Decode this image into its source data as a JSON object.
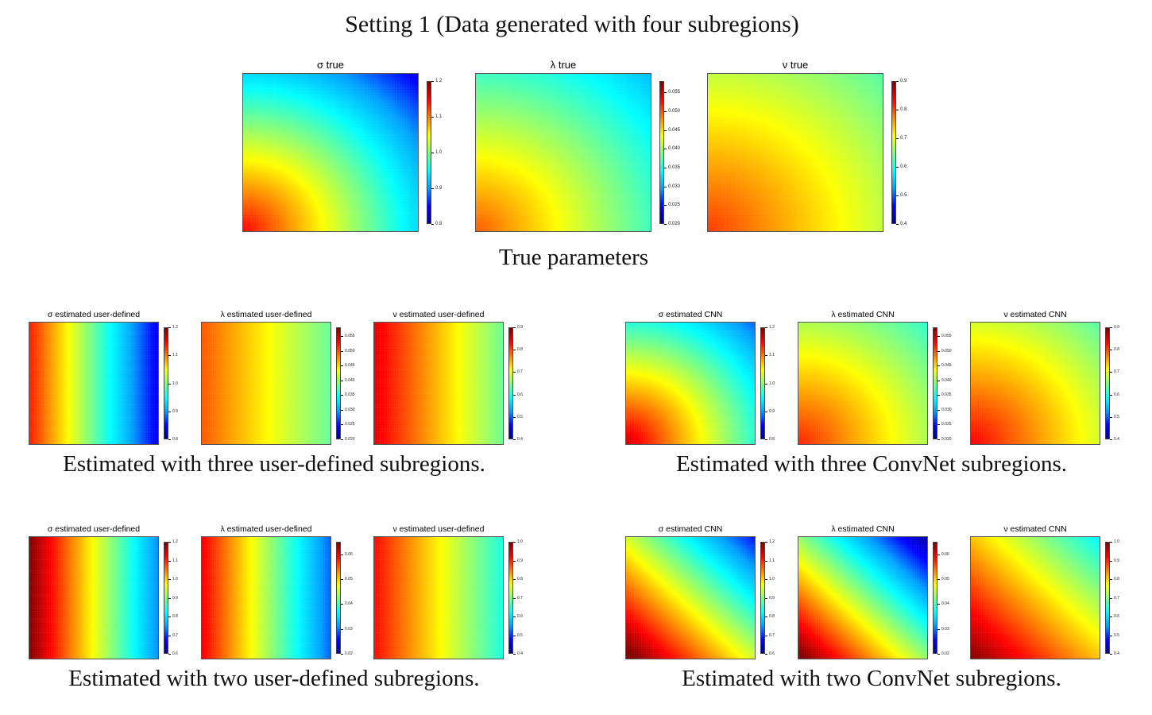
{
  "title": "Setting 1 (Data generated with four subregions)",
  "colormap": [
    "#00008f",
    "#0000ff",
    "#00a0ff",
    "#00ffff",
    "#80ff80",
    "#ffff00",
    "#ff8000",
    "#ff0000",
    "#800000"
  ],
  "chart_data": [
    {
      "group": "true",
      "caption": "True parameters",
      "panels": [
        {
          "type": "heatmap",
          "title": "σ true",
          "field": "radial",
          "from": 1.15,
          "to": 0.84,
          "clim": [
            0.8,
            1.2
          ],
          "ticks": [
            "0.8",
            "0.9",
            "1.0",
            "1.1",
            "1.2"
          ],
          "tickvals": [
            0.8,
            0.9,
            1.0,
            1.1,
            1.2
          ]
        },
        {
          "type": "heatmap",
          "title": "λ true",
          "field": "radial",
          "from": 0.05,
          "to": 0.031,
          "clim": [
            0.02,
            0.058
          ],
          "ticks": [
            "0.020",
            "0.025",
            "0.030",
            "0.035",
            "0.040",
            "0.045",
            "0.050",
            "0.055"
          ],
          "tickvals": [
            0.02,
            0.025,
            0.03,
            0.035,
            0.04,
            0.045,
            0.05,
            0.055
          ]
        },
        {
          "type": "heatmap",
          "title": "ν true",
          "field": "radial",
          "from": 0.81,
          "to": 0.63,
          "clim": [
            0.4,
            0.9
          ],
          "ticks": [
            "0.4",
            "0.5",
            "0.6",
            "0.7",
            "0.8",
            "0.9"
          ],
          "tickvals": [
            0.4,
            0.5,
            0.6,
            0.7,
            0.8,
            0.9
          ]
        }
      ]
    },
    {
      "group": "three-user",
      "caption": "Estimated with three user-defined subregions.",
      "panels": [
        {
          "type": "heatmap",
          "title": "σ estimated user-defined",
          "field": "horizontal",
          "from": 1.14,
          "to": 0.84,
          "clim": [
            0.8,
            1.2
          ],
          "ticks": [
            "0.8",
            "0.9",
            "1.0",
            "1.1",
            "1.2"
          ],
          "tickvals": [
            0.8,
            0.9,
            1.0,
            1.1,
            1.2
          ]
        },
        {
          "type": "heatmap",
          "title": "λ estimated user-defined",
          "field": "horizontal",
          "from": 0.05,
          "to": 0.038,
          "clim": [
            0.02,
            0.058
          ],
          "ticks": [
            "0.020",
            "0.025",
            "0.030",
            "0.035",
            "0.040",
            "0.045",
            "0.050",
            "0.055"
          ],
          "tickvals": [
            0.02,
            0.025,
            0.03,
            0.035,
            0.04,
            0.045,
            0.05,
            0.055
          ]
        },
        {
          "type": "heatmap",
          "title": "ν estimated user-defined",
          "field": "horizontal",
          "from": 0.85,
          "to": 0.64,
          "clim": [
            0.4,
            0.9
          ],
          "ticks": [
            "0.4",
            "0.5",
            "0.6",
            "0.7",
            "0.8",
            "0.9"
          ],
          "tickvals": [
            0.4,
            0.5,
            0.6,
            0.7,
            0.8,
            0.9
          ]
        }
      ]
    },
    {
      "group": "three-cnn",
      "caption": "Estimated with three ConvNet subregions.",
      "panels": [
        {
          "type": "heatmap",
          "title": "σ estimated CNN",
          "field": "radial",
          "from": 1.17,
          "to": 0.88,
          "clim": [
            0.8,
            1.2
          ],
          "ticks": [
            "0.8",
            "0.9",
            "1.0",
            "1.1",
            "1.2"
          ],
          "tickvals": [
            0.8,
            0.9,
            1.0,
            1.1,
            1.2
          ]
        },
        {
          "type": "heatmap",
          "title": "λ estimated CNN",
          "field": "radial",
          "from": 0.052,
          "to": 0.036,
          "clim": [
            0.02,
            0.058
          ],
          "ticks": [
            "0.020",
            "0.025",
            "0.030",
            "0.035",
            "0.040",
            "0.045",
            "0.050",
            "0.055"
          ],
          "tickvals": [
            0.02,
            0.025,
            0.03,
            0.035,
            0.04,
            0.045,
            0.05,
            0.055
          ]
        },
        {
          "type": "heatmap",
          "title": "ν estimated CNN",
          "field": "radial",
          "from": 0.84,
          "to": 0.63,
          "clim": [
            0.4,
            0.9
          ],
          "ticks": [
            "0.4",
            "0.5",
            "0.6",
            "0.7",
            "0.8",
            "0.9"
          ],
          "tickvals": [
            0.4,
            0.5,
            0.6,
            0.7,
            0.8,
            0.9
          ]
        }
      ]
    },
    {
      "group": "two-user",
      "caption": "Estimated with two user-defined subregions.",
      "panels": [
        {
          "type": "heatmap",
          "title": "σ estimated user-defined",
          "field": "horizontal",
          "from": 1.2,
          "to": 0.74,
          "clim": [
            0.6,
            1.2
          ],
          "ticks": [
            "0.6",
            "0.7",
            "0.8",
            "0.9",
            "1.0",
            "1.1",
            "1.2"
          ],
          "tickvals": [
            0.6,
            0.7,
            0.8,
            0.9,
            1.0,
            1.1,
            1.2
          ]
        },
        {
          "type": "heatmap",
          "title": "λ estimated user-defined",
          "field": "horizontal",
          "from": 0.06,
          "to": 0.029,
          "clim": [
            0.02,
            0.065
          ],
          "ticks": [
            "0.02",
            "0.03",
            "0.04",
            "0.05",
            "0.06"
          ],
          "tickvals": [
            0.02,
            0.03,
            0.04,
            0.05,
            0.06
          ]
        },
        {
          "type": "heatmap",
          "title": "ν estimated user-defined",
          "field": "horizontal",
          "from": 0.92,
          "to": 0.64,
          "clim": [
            0.4,
            1.0
          ],
          "ticks": [
            "0.4",
            "0.5",
            "0.6",
            "0.7",
            "0.8",
            "0.9",
            "1.0"
          ],
          "tickvals": [
            0.4,
            0.5,
            0.6,
            0.7,
            0.8,
            0.9,
            1.0
          ]
        }
      ]
    },
    {
      "group": "two-cnn",
      "caption": "Estimated with two ConvNet subregions.",
      "panels": [
        {
          "type": "heatmap",
          "title": "σ estimated CNN",
          "field": "diagonal",
          "from": 1.22,
          "to": 0.68,
          "clim": [
            0.6,
            1.2
          ],
          "ticks": [
            "0.6",
            "0.7",
            "0.8",
            "0.9",
            "1.0",
            "1.1",
            "1.2"
          ],
          "tickvals": [
            0.6,
            0.7,
            0.8,
            0.9,
            1.0,
            1.1,
            1.2
          ]
        },
        {
          "type": "heatmap",
          "title": "λ estimated CNN",
          "field": "diagonal",
          "from": 0.066,
          "to": 0.021,
          "clim": [
            0.02,
            0.065
          ],
          "ticks": [
            "0.02",
            "0.03",
            "0.04",
            "0.05",
            "0.06"
          ],
          "tickvals": [
            0.02,
            0.03,
            0.04,
            0.05,
            0.06
          ]
        },
        {
          "type": "heatmap",
          "title": "ν estimated CNN",
          "field": "diagonal",
          "from": 1.0,
          "to": 0.62,
          "clim": [
            0.4,
            1.0
          ],
          "ticks": [
            "0.4",
            "0.5",
            "0.6",
            "0.7",
            "0.8",
            "0.9",
            "1.0"
          ],
          "tickvals": [
            0.4,
            0.5,
            0.6,
            0.7,
            0.8,
            0.9,
            1.0
          ]
        }
      ]
    }
  ]
}
